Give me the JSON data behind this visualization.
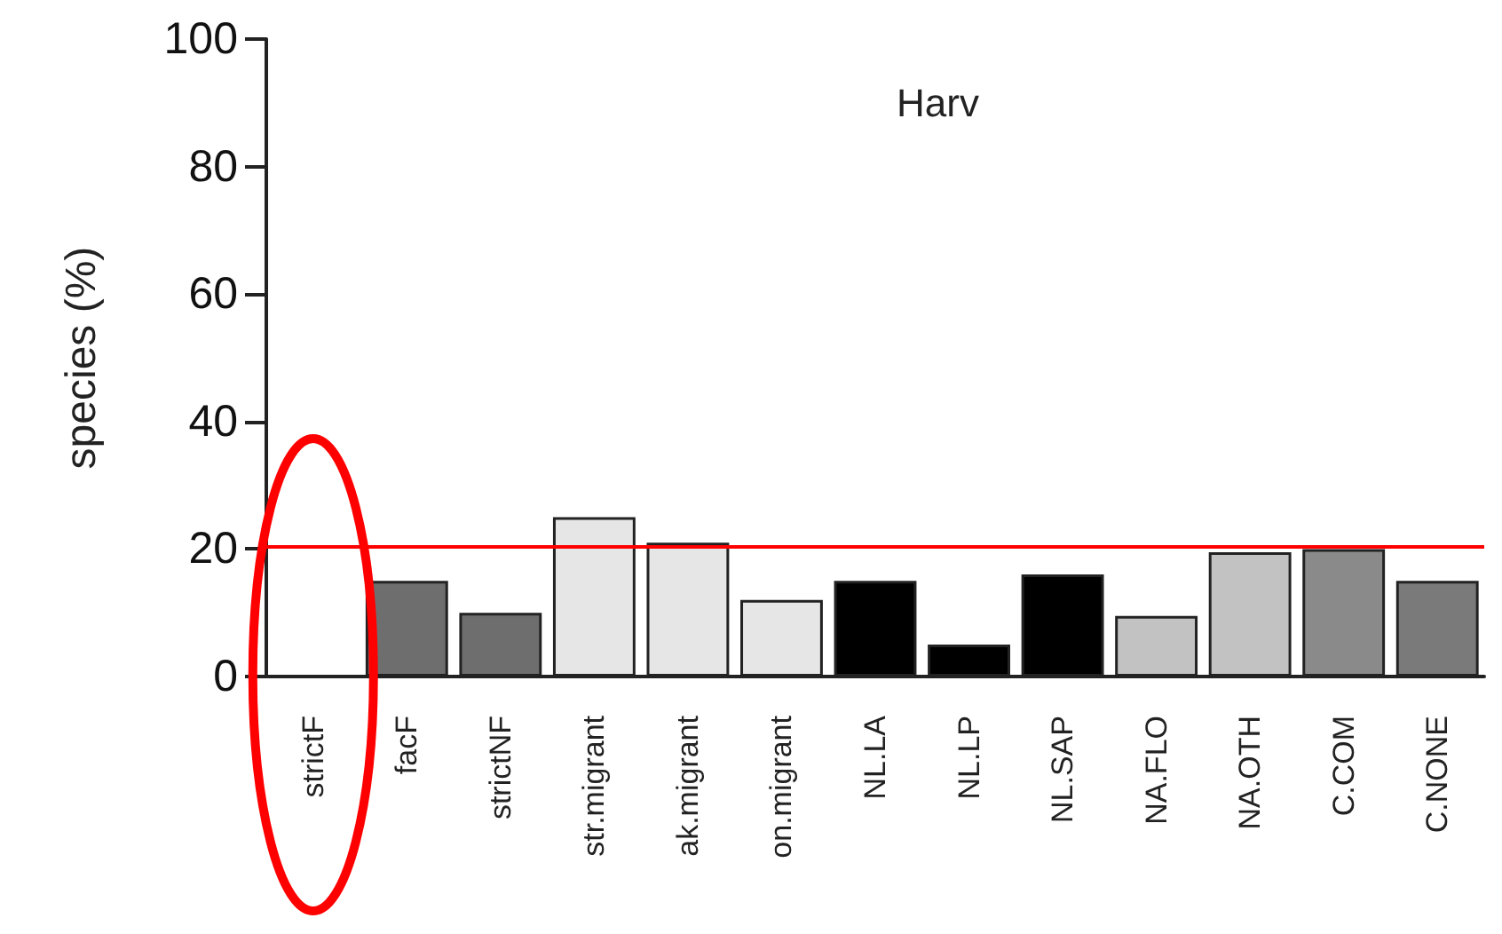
{
  "chart_data": {
    "type": "bar",
    "title": "Harv",
    "ylabel": "species (%)",
    "categories": [
      "strictF",
      "facF",
      "strictNF",
      "str.migrant",
      "ak.migrant",
      "on.migrant",
      "NL.LA",
      "NL.LP",
      "NL.SAP",
      "NA.FLO",
      "NA.OTH",
      "C.COM",
      "C.NONE"
    ],
    "values": [
      0,
      15,
      10,
      25,
      21,
      12,
      15,
      5,
      16,
      9.5,
      19.5,
      20,
      15
    ],
    "colors": [
      "#222222",
      "#6e6e6e",
      "#6e6e6e",
      "#e6e6e6",
      "#e6e6e6",
      "#e6e6e6",
      "#000000",
      "#000000",
      "#000000",
      "#c2c2c2",
      "#c2c2c2",
      "#8a8a8a",
      "#7a7a7a"
    ],
    "ylim": [
      0,
      100
    ],
    "yticks": [
      0,
      20,
      40,
      60,
      80,
      100
    ],
    "ref_lines": [
      {
        "axis": "y",
        "value": 20.5,
        "color": "#ff0000"
      }
    ]
  }
}
